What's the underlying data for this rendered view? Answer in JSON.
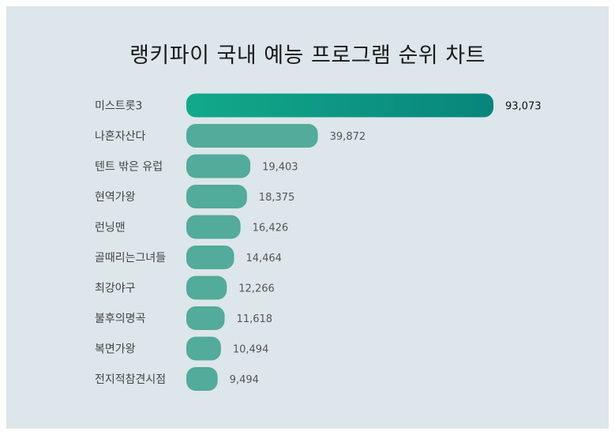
{
  "title": "랭키파이 국내 예능 프로그램 순위 차트",
  "colors": {
    "background": "#dde6ea",
    "bar": "#52ab9b",
    "bar_top_start": "#12a98a",
    "bar_top_end": "#08857b"
  },
  "chart_data": {
    "type": "bar",
    "orientation": "horizontal",
    "title": "랭키파이 국내 예능 프로그램 순위 차트",
    "categories": [
      "미스트롯3",
      "나혼자산다",
      "텐트 밖은 유럽",
      "현역가왕",
      "런닝맨",
      "골때리는그녀들",
      "최강야구",
      "불후의명곡",
      "복면가왕",
      "전지적참견시점"
    ],
    "values": [
      93073,
      39872,
      19403,
      18375,
      16426,
      14464,
      12266,
      11618,
      10494,
      9494
    ],
    "value_labels": [
      "93,073",
      "39,872",
      "19,403",
      "18,375",
      "16,426",
      "14,464",
      "12,266",
      "11,618",
      "10,494",
      "9,494"
    ],
    "xlim": [
      0,
      93073
    ],
    "grid": false,
    "legend": "none"
  }
}
